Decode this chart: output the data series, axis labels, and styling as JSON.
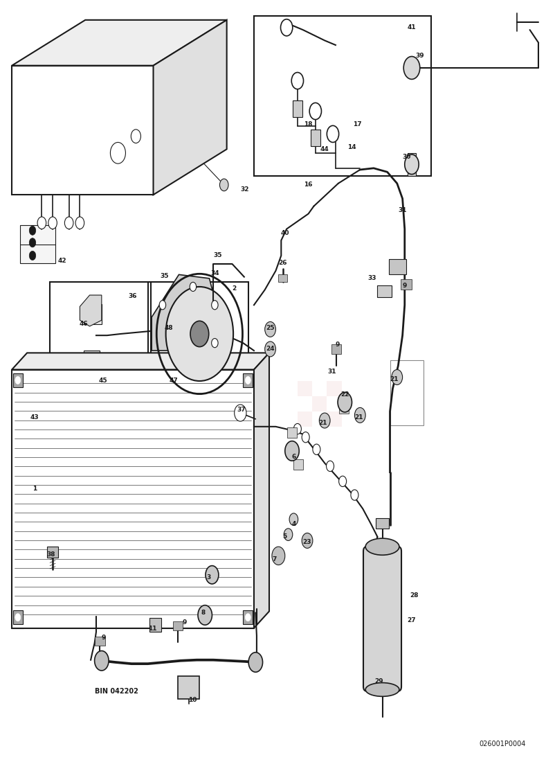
{
  "bg_color": "#ffffff",
  "line_color": "#1a1a1a",
  "text_color": "#1a1a1a",
  "fig_width": 7.89,
  "fig_height": 11.0,
  "dpi": 100,
  "diagram_ref": "026001P0004"
}
